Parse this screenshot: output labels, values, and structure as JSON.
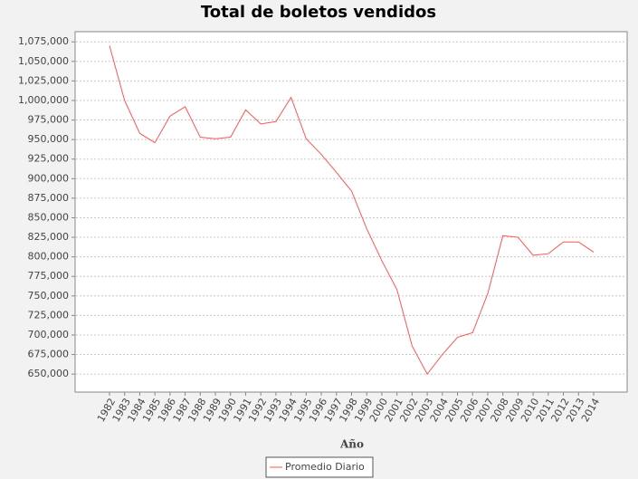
{
  "chart_data": {
    "type": "line",
    "title": "Total de boletos vendidos",
    "x_label": "Año",
    "categories": [
      "1982",
      "1983",
      "1984",
      "1985",
      "1986",
      "1987",
      "1988",
      "1989",
      "1990",
      "1991",
      "1992",
      "1993",
      "1994",
      "1995",
      "1996",
      "1997",
      "1998",
      "1999",
      "2000",
      "2001",
      "2002",
      "2003",
      "2004",
      "2005",
      "2006",
      "2007",
      "2008",
      "2009",
      "2010",
      "2011",
      "2012",
      "2013",
      "2014"
    ],
    "series": [
      {
        "name": "Promedio Diario",
        "color": "#ff5555",
        "values": [
          1070000,
          1000000,
          958000,
          946000,
          980000,
          992000,
          953000,
          951000,
          953000,
          988000,
          970000,
          973000,
          1004000,
          951000,
          931000,
          908000,
          884000,
          836000,
          795000,
          758000,
          686000,
          650000,
          675000,
          697000,
          703000,
          753000,
          827000,
          825000,
          802000,
          804000,
          819000,
          819000,
          806000
        ]
      }
    ],
    "ylim": [
      627000,
      1088000
    ],
    "yticks": [
      {
        "value": 650000,
        "label": "650,000"
      },
      {
        "value": 675000,
        "label": "675,000"
      },
      {
        "value": 700000,
        "label": "700,000"
      },
      {
        "value": 725000,
        "label": "725,000"
      },
      {
        "value": 750000,
        "label": "750,000"
      },
      {
        "value": 775000,
        "label": "775,000"
      },
      {
        "value": 800000,
        "label": "800,000"
      },
      {
        "value": 825000,
        "label": "825,000"
      },
      {
        "value": 850000,
        "label": "850,000"
      },
      {
        "value": 875000,
        "label": "875,000"
      },
      {
        "value": 900000,
        "label": "900,000"
      },
      {
        "value": 925000,
        "label": "925,000"
      },
      {
        "value": 950000,
        "label": "950,000"
      },
      {
        "value": 975000,
        "label": "975,000"
      },
      {
        "value": 1000000,
        "label": "1,000,000"
      },
      {
        "value": 1025000,
        "label": "1,025,000"
      },
      {
        "value": 1050000,
        "label": "1,050,000"
      },
      {
        "value": 1075000,
        "label": "1,075,000"
      }
    ],
    "grid": true
  }
}
